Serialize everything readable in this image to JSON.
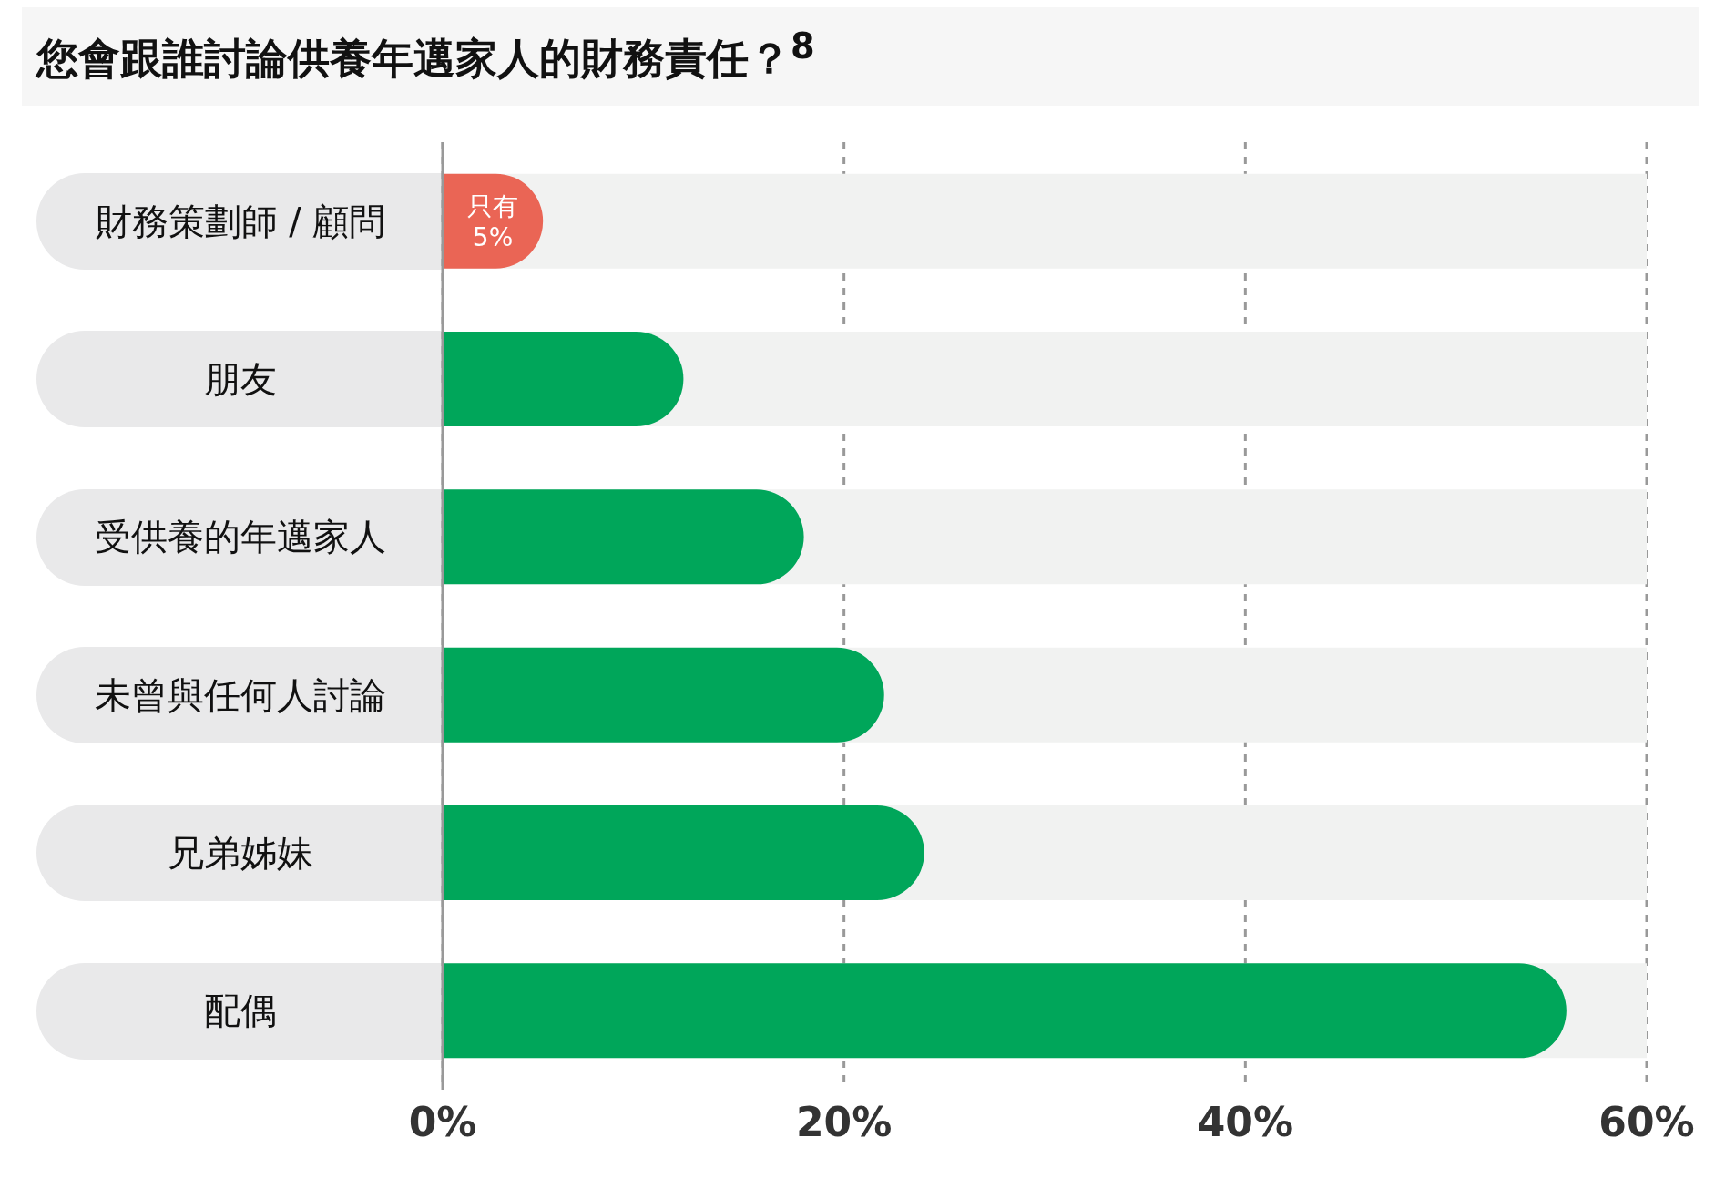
{
  "chart_data": {
    "type": "bar",
    "orientation": "horizontal",
    "title": "您會跟誰討論供養年邁家人的財務責任？$^{8}$",
    "categories": [
      "財務策劃師 / 顧問",
      "朋友",
      "受供養的年邁家人",
      "未曾與任何人討論",
      "兄弟姊妹",
      "配偶"
    ],
    "values": [
      5,
      12,
      18,
      22,
      24,
      56
    ],
    "colors": [
      "#ea6555",
      "#00a65a",
      "#00a65a",
      "#00a65a",
      "#00a65a",
      "#00a65a"
    ],
    "value_labels": [
      "只有 5%",
      null,
      null,
      null,
      null,
      null
    ],
    "xlim": [
      0,
      60
    ],
    "xticks": [
      {
        "value": 0,
        "label": "0%"
      },
      {
        "value": 20,
        "label": "20%"
      },
      {
        "value": 40,
        "label": "40%"
      },
      {
        "value": 60,
        "label": "60%"
      }
    ],
    "grid": "x",
    "legend": false
  }
}
